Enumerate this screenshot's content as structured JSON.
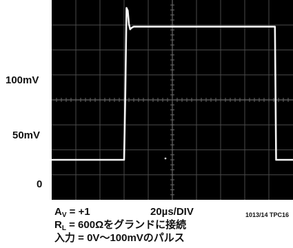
{
  "chart_data": {
    "type": "line",
    "y_tick_labels": [
      "100mV",
      "50mV",
      "0"
    ],
    "xlim": [
      0,
      200
    ],
    "ylim": [
      -30,
      120
    ],
    "trace": {
      "x": [
        0,
        60,
        61,
        62,
        63,
        64,
        65,
        66,
        68,
        70,
        75,
        80,
        100,
        120,
        140,
        160,
        185,
        186,
        200
      ],
      "y": [
        0,
        0,
        50,
        114,
        112,
        102,
        98,
        99,
        100,
        100,
        100,
        100,
        100,
        100,
        100,
        100,
        100,
        0,
        0
      ]
    },
    "gain_label": "A",
    "gain_subscript": "V",
    "gain_value": " = +1",
    "timebase": "20µs/DIV",
    "figure_code": "1013/14 TPC16",
    "load_label": "R",
    "load_subscript": "L",
    "load_value": " = 600Ωをグランドに接続",
    "input_desc": "入力 = 0V〜100mVのパルス"
  }
}
